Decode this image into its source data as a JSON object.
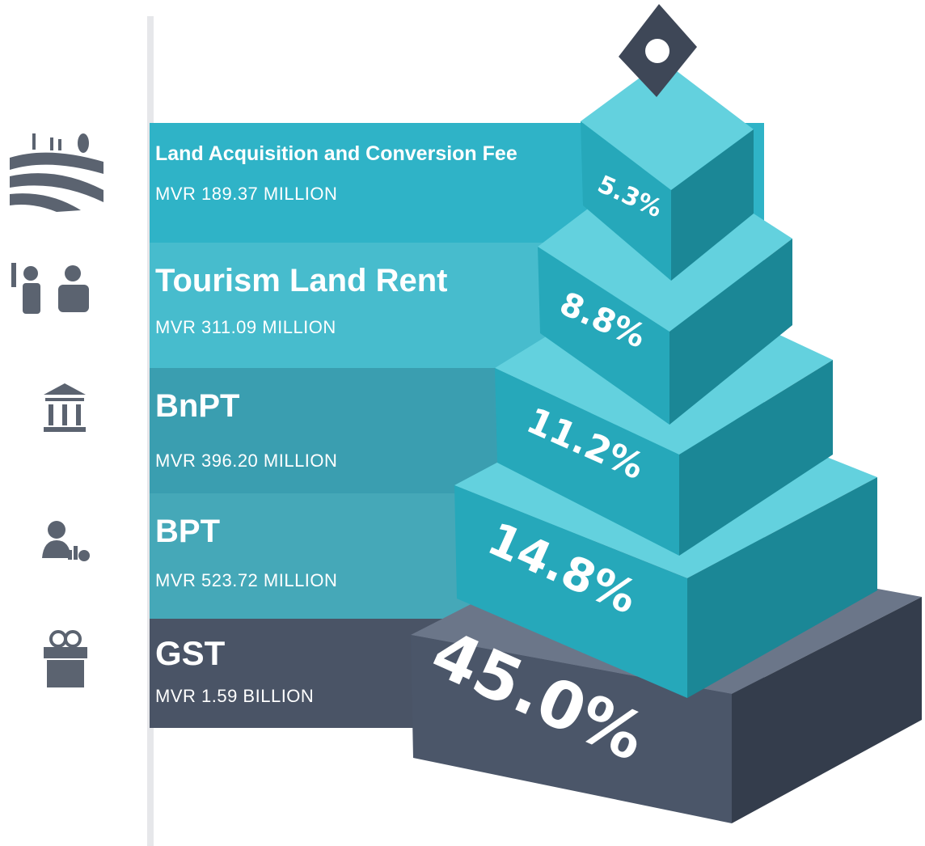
{
  "tiers": [
    {
      "name": "Land Acquisition and Conversion Fee",
      "amount": "MVR 189.37 MILLION",
      "share": "5.3%"
    },
    {
      "name": "Tourism Land Rent",
      "amount": "MVR 311.09 MILLION",
      "share": "8.8%"
    },
    {
      "name": "BnPT",
      "amount": "MVR 396.20 MILLION",
      "share": "11.2%"
    },
    {
      "name": "BPT",
      "amount": "MVR 523.72 MILLION",
      "share": "14.8%"
    },
    {
      "name": "GST",
      "amount": "MVR 1.59 BILLION",
      "share": "45.0%"
    }
  ]
}
